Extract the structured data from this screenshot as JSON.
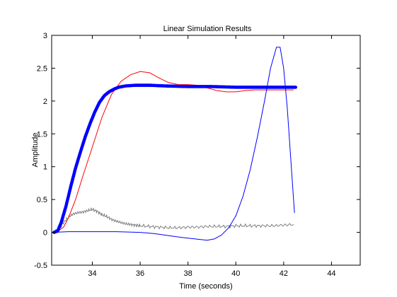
{
  "chart_data": {
    "type": "line",
    "title": "Linear Simulation Results",
    "xlabel": "Time (seconds)",
    "ylabel": "Amplitude",
    "xlim": [
      32.3,
      45.2
    ],
    "ylim": [
      -0.5,
      3
    ],
    "xticks": [
      34,
      36,
      38,
      40,
      42,
      44
    ],
    "yticks": [
      -0.5,
      0,
      0.5,
      1,
      1.5,
      2,
      2.5,
      3
    ],
    "grid": false,
    "series": [
      {
        "color": "#808080",
        "style": "noisy-thin",
        "points": [
          [
            32.4,
            0.0
          ],
          [
            32.6,
            0.05
          ],
          [
            32.8,
            0.15
          ],
          [
            33.0,
            0.23
          ],
          [
            33.2,
            0.28
          ],
          [
            33.4,
            0.3
          ],
          [
            33.6,
            0.31
          ],
          [
            33.8,
            0.33
          ],
          [
            34.0,
            0.35
          ],
          [
            34.2,
            0.32
          ],
          [
            34.4,
            0.27
          ],
          [
            34.6,
            0.24
          ],
          [
            34.8,
            0.2
          ],
          [
            35.0,
            0.17
          ],
          [
            35.2,
            0.15
          ],
          [
            35.4,
            0.13
          ],
          [
            35.6,
            0.12
          ],
          [
            35.8,
            0.11
          ],
          [
            36.0,
            0.1
          ],
          [
            36.4,
            0.09
          ],
          [
            36.8,
            0.08
          ],
          [
            37.2,
            0.07
          ],
          [
            37.6,
            0.07
          ],
          [
            38.0,
            0.08
          ],
          [
            38.4,
            0.08
          ],
          [
            38.8,
            0.09
          ],
          [
            39.2,
            0.09
          ],
          [
            39.6,
            0.09
          ],
          [
            40.0,
            0.1
          ],
          [
            40.4,
            0.1
          ],
          [
            40.8,
            0.1
          ],
          [
            41.2,
            0.1
          ],
          [
            41.6,
            0.1
          ],
          [
            42.0,
            0.11
          ],
          [
            42.4,
            0.12
          ]
        ]
      },
      {
        "color": "#ff0000",
        "style": "thin",
        "points": [
          [
            32.3,
            0.0
          ],
          [
            32.5,
            0.0
          ],
          [
            32.8,
            0.08
          ],
          [
            33.0,
            0.22
          ],
          [
            33.3,
            0.5
          ],
          [
            33.6,
            0.85
          ],
          [
            34.0,
            1.3
          ],
          [
            34.4,
            1.75
          ],
          [
            34.8,
            2.1
          ],
          [
            35.2,
            2.3
          ],
          [
            35.6,
            2.4
          ],
          [
            36.0,
            2.45
          ],
          [
            36.4,
            2.43
          ],
          [
            36.8,
            2.35
          ],
          [
            37.2,
            2.28
          ],
          [
            37.6,
            2.25
          ],
          [
            38.0,
            2.25
          ],
          [
            38.4,
            2.24
          ],
          [
            38.8,
            2.2
          ],
          [
            39.2,
            2.16
          ],
          [
            39.6,
            2.14
          ],
          [
            40.0,
            2.14
          ],
          [
            40.4,
            2.16
          ],
          [
            40.8,
            2.17
          ],
          [
            41.2,
            2.17
          ],
          [
            41.6,
            2.17
          ],
          [
            42.0,
            2.17
          ],
          [
            42.4,
            2.17
          ]
        ]
      },
      {
        "color": "#0000ff",
        "style": "thin",
        "points": [
          [
            32.3,
            0.0
          ],
          [
            33.0,
            0.01
          ],
          [
            34.0,
            0.01
          ],
          [
            35.0,
            0.01
          ],
          [
            36.0,
            0.0
          ],
          [
            36.6,
            -0.02
          ],
          [
            37.2,
            -0.05
          ],
          [
            37.8,
            -0.08
          ],
          [
            38.3,
            -0.1
          ],
          [
            38.8,
            -0.12
          ],
          [
            39.1,
            -0.1
          ],
          [
            39.4,
            -0.04
          ],
          [
            39.7,
            0.07
          ],
          [
            40.0,
            0.25
          ],
          [
            40.3,
            0.55
          ],
          [
            40.6,
            0.95
          ],
          [
            40.9,
            1.45
          ],
          [
            41.2,
            2.0
          ],
          [
            41.45,
            2.5
          ],
          [
            41.7,
            2.82
          ],
          [
            41.85,
            2.82
          ],
          [
            42.0,
            2.5
          ],
          [
            42.15,
            1.9
          ],
          [
            42.3,
            1.1
          ],
          [
            42.45,
            0.3
          ]
        ]
      },
      {
        "color": "#0000ff",
        "style": "thick-markers",
        "points": [
          [
            32.4,
            0.0
          ],
          [
            32.55,
            0.02
          ],
          [
            32.7,
            0.15
          ],
          [
            32.9,
            0.4
          ],
          [
            33.1,
            0.7
          ],
          [
            33.3,
            0.98
          ],
          [
            33.5,
            1.22
          ],
          [
            33.7,
            1.45
          ],
          [
            33.9,
            1.65
          ],
          [
            34.1,
            1.83
          ],
          [
            34.3,
            1.98
          ],
          [
            34.5,
            2.08
          ],
          [
            34.7,
            2.14
          ],
          [
            34.9,
            2.18
          ],
          [
            35.1,
            2.21
          ],
          [
            35.4,
            2.23
          ],
          [
            35.8,
            2.24
          ],
          [
            36.4,
            2.24
          ],
          [
            37.0,
            2.23
          ],
          [
            38.0,
            2.22
          ],
          [
            39.0,
            2.22
          ],
          [
            40.0,
            2.21
          ],
          [
            41.0,
            2.21
          ],
          [
            42.0,
            2.21
          ],
          [
            42.5,
            2.21
          ]
        ]
      }
    ]
  }
}
